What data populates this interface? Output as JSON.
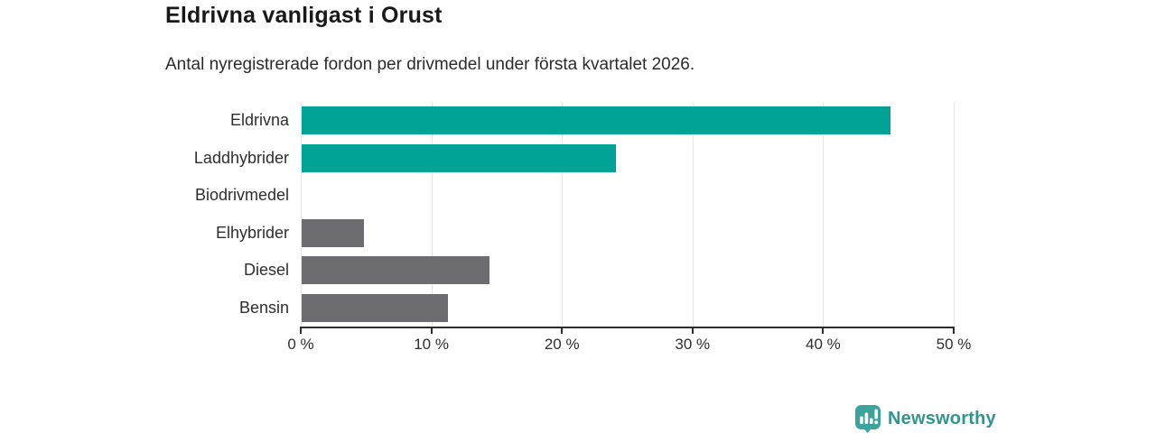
{
  "header": {
    "title": "Eldrivna vanligast i Orust",
    "subtitle": "Antal nyregistrerade fordon per drivmedel under första kvartalet 2026."
  },
  "chart_data": {
    "type": "bar",
    "orientation": "horizontal",
    "title": "Eldrivna vanligast i Orust",
    "subtitle": "Antal nyregistrerade fordon per drivmedel under första kvartalet 2026.",
    "categories": [
      "Eldrivna",
      "Laddhybrider",
      "Biodrivmedel",
      "Elhybrider",
      "Diesel",
      "Bensin"
    ],
    "values": [
      45.1,
      24.1,
      0,
      4.8,
      14.4,
      11.2
    ],
    "unit": "%",
    "bar_colors": [
      "#00a396",
      "#00a396",
      "#6c6c71",
      "#6c6c71",
      "#6c6c71",
      "#6c6c71"
    ],
    "xlabel": "",
    "ylabel": "",
    "xlim": [
      0,
      50
    ],
    "x_ticks": [
      0,
      10,
      20,
      30,
      40,
      50
    ],
    "x_tick_labels": [
      "0 %",
      "10 %",
      "20 %",
      "30 %",
      "40 %",
      "50 %"
    ],
    "grid": true,
    "legend": false
  },
  "branding": {
    "logo_text": "Newsworthy",
    "icon_name": "newsworthy-bar-chart-bubble-icon",
    "logo_color": "#31958f",
    "icon_color": "#3ba39b"
  },
  "colors": {
    "accent_teal": "#00a396",
    "neutral_gray": "#6c6c71",
    "axis": "#2f2f2f",
    "gridline": "#e7e7e7",
    "text": "#2e2e2e",
    "background": "#ffffff"
  }
}
